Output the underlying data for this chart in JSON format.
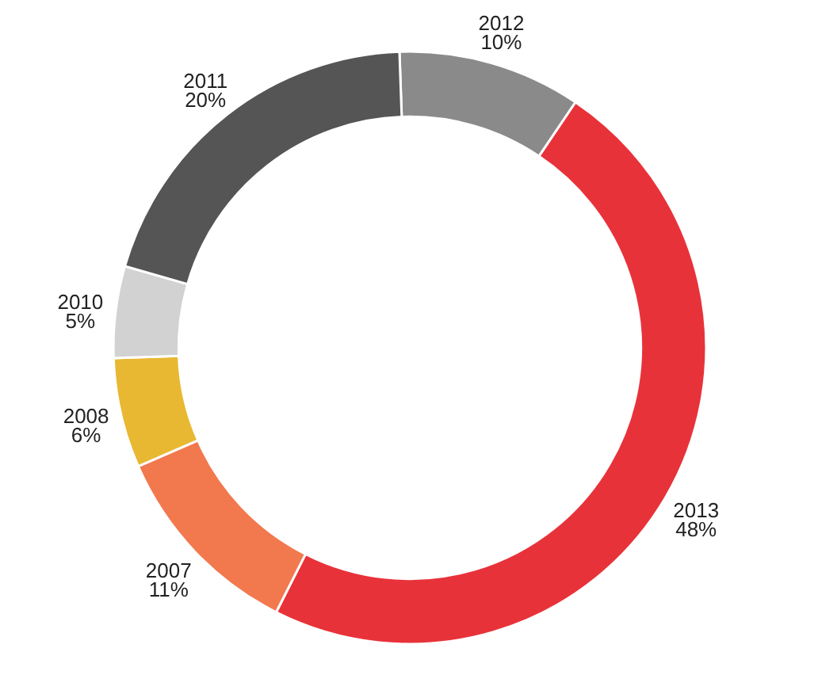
{
  "chart_data": {
    "type": "donut",
    "categories": [
      "2012",
      "2013",
      "2007",
      "2008",
      "2010",
      "2011"
    ],
    "values": [
      10,
      48,
      11,
      6,
      5,
      20
    ],
    "value_labels": [
      "10%",
      "48%",
      "11%",
      "6%",
      "5%",
      "20%"
    ],
    "colors": [
      "#8a8a8a",
      "#e8323a",
      "#f2784e",
      "#e8b832",
      "#d2d2d2",
      "#555555"
    ]
  }
}
